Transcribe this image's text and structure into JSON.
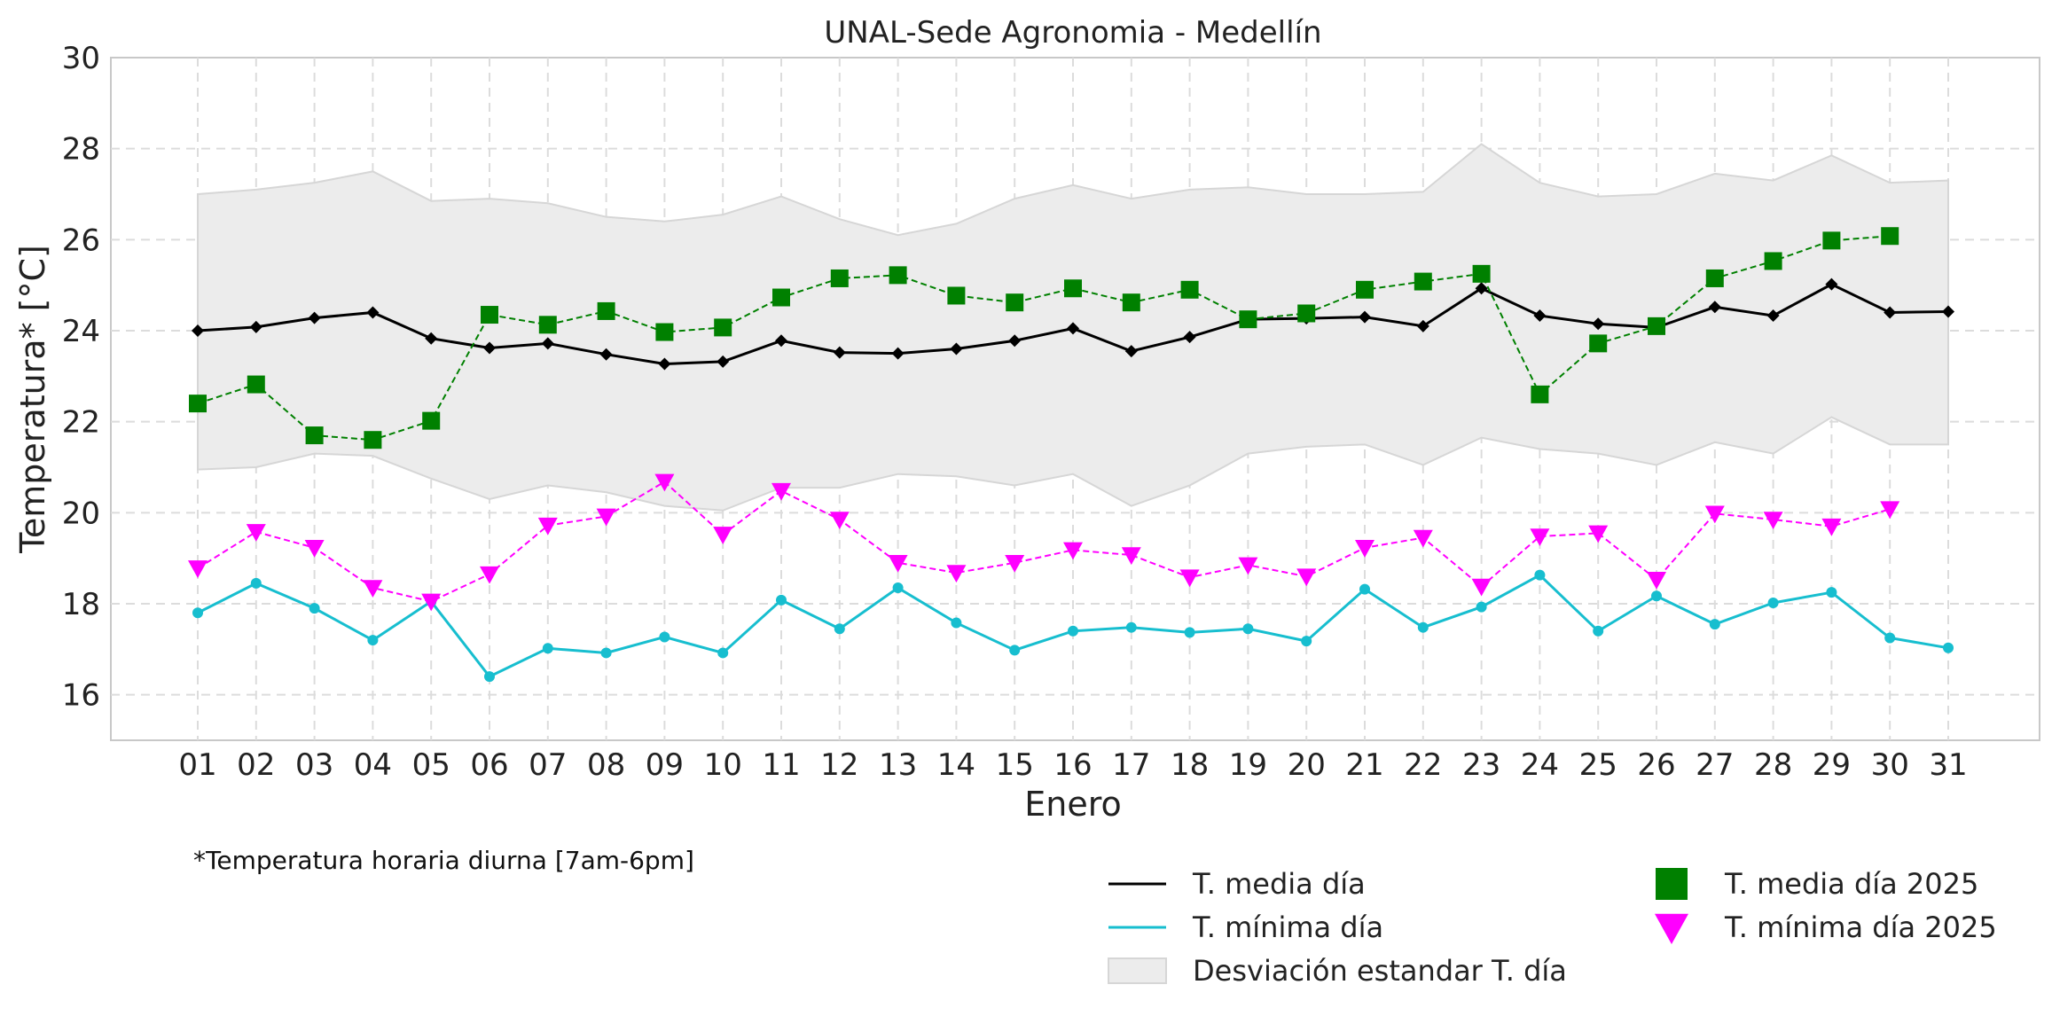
{
  "chart_data": {
    "type": "line",
    "title": "UNAL-Sede Agronomia - Medellín",
    "xlabel": "Enero",
    "ylabel": "Temperatura* [°C]",
    "note": "*Temperatura horaria diurna [7am-6pm]",
    "ylim": [
      15,
      30
    ],
    "yticks": [
      16,
      18,
      20,
      22,
      24,
      26,
      28,
      30
    ],
    "grid": true,
    "legend_position": "bottom-right",
    "categories": [
      "01",
      "02",
      "03",
      "04",
      "05",
      "06",
      "07",
      "08",
      "09",
      "10",
      "11",
      "12",
      "13",
      "14",
      "15",
      "16",
      "17",
      "18",
      "19",
      "20",
      "21",
      "22",
      "23",
      "24",
      "25",
      "26",
      "27",
      "28",
      "29",
      "30",
      "31"
    ],
    "band": {
      "name": "Desviación estandar T. día",
      "color": "#e0e0e0",
      "upper": [
        27.0,
        27.1,
        27.25,
        27.5,
        26.85,
        26.9,
        26.8,
        26.5,
        26.4,
        26.55,
        26.95,
        26.45,
        26.1,
        26.35,
        26.9,
        27.2,
        26.9,
        27.1,
        27.15,
        27.0,
        27.0,
        27.05,
        28.1,
        27.25,
        26.95,
        27.0,
        27.45,
        27.3,
        27.85,
        27.25,
        27.3
      ],
      "lower": [
        20.95,
        21.0,
        21.3,
        21.25,
        20.75,
        20.3,
        20.6,
        20.45,
        20.15,
        20.05,
        20.55,
        20.55,
        20.85,
        20.8,
        20.6,
        20.85,
        20.15,
        20.6,
        21.3,
        21.45,
        21.5,
        21.05,
        21.65,
        21.4,
        21.3,
        21.05,
        21.55,
        21.3,
        22.1,
        21.5,
        21.5
      ]
    },
    "series": [
      {
        "name": "T. media día",
        "color": "#000000",
        "style": "solid",
        "marker": "diamond",
        "values": [
          24.0,
          24.08,
          24.28,
          24.4,
          23.83,
          23.62,
          23.72,
          23.48,
          23.27,
          23.32,
          23.78,
          23.52,
          23.5,
          23.6,
          23.78,
          24.05,
          23.55,
          23.86,
          24.25,
          24.27,
          24.3,
          24.1,
          24.93,
          24.33,
          24.15,
          24.07,
          24.52,
          24.33,
          25.02,
          24.4,
          24.42
        ]
      },
      {
        "name": "T. mínima día",
        "color": "#17becf",
        "style": "solid",
        "marker": "circle",
        "values": [
          17.8,
          18.45,
          17.9,
          17.2,
          18.05,
          16.4,
          17.02,
          16.92,
          17.27,
          16.92,
          18.08,
          17.45,
          18.35,
          17.58,
          16.98,
          17.4,
          17.48,
          17.37,
          17.45,
          17.18,
          18.32,
          17.48,
          17.93,
          18.63,
          17.4,
          18.17,
          17.55,
          18.02,
          18.25,
          17.25,
          17.03
        ]
      },
      {
        "name": "T. media día 2025",
        "color": "#008000",
        "style": "dashed",
        "marker": "square",
        "values": [
          22.4,
          22.82,
          21.7,
          21.6,
          22.02,
          24.35,
          24.13,
          24.43,
          23.97,
          24.07,
          24.73,
          25.15,
          25.22,
          24.77,
          24.62,
          24.93,
          24.62,
          24.9,
          24.25,
          24.38,
          24.9,
          25.08,
          25.25,
          22.6,
          23.72,
          24.1,
          25.15,
          25.53,
          25.98,
          26.08,
          null
        ]
      },
      {
        "name": "T. mínima día 2025",
        "color": "#ff00ff",
        "style": "dashed",
        "marker": "triangle-down",
        "values": [
          18.78,
          19.58,
          19.23,
          18.35,
          18.05,
          18.65,
          19.72,
          19.92,
          20.68,
          19.52,
          20.48,
          19.85,
          18.9,
          18.68,
          18.9,
          19.18,
          19.07,
          18.58,
          18.85,
          18.6,
          19.23,
          19.45,
          18.38,
          19.48,
          19.55,
          18.53,
          19.98,
          19.85,
          19.7,
          20.08,
          null
        ]
      }
    ]
  }
}
